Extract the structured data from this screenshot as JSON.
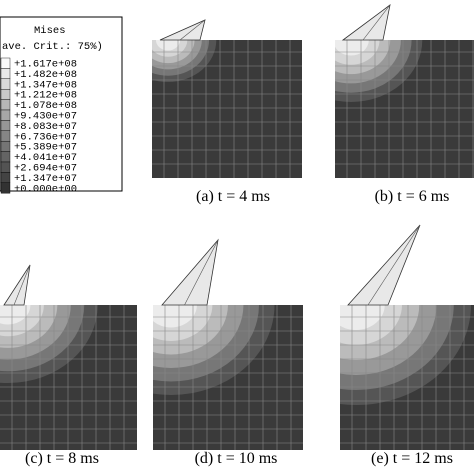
{
  "legend": {
    "title": "Mises",
    "criterion": "ave. Crit.: 75%)",
    "levels": [
      "+1.617e+08",
      "+1.482e+08",
      "+1.347e+08",
      "+1.212e+08",
      "+1.078e+08",
      "+9.430e+07",
      "+8.083e+07",
      "+6.736e+07",
      "+5.389e+07",
      "+4.041e+07",
      "+2.694e+07",
      "+1.347e+07",
      "+0.000e+00"
    ]
  },
  "panels": [
    {
      "caption": "(a) t = 4 ms"
    },
    {
      "caption": "(b) t = 6 ms"
    },
    {
      "caption": "(c) t = 8 ms"
    },
    {
      "caption": "(d) t = 10 ms"
    },
    {
      "caption": "(e) t = 12 ms"
    }
  ]
}
